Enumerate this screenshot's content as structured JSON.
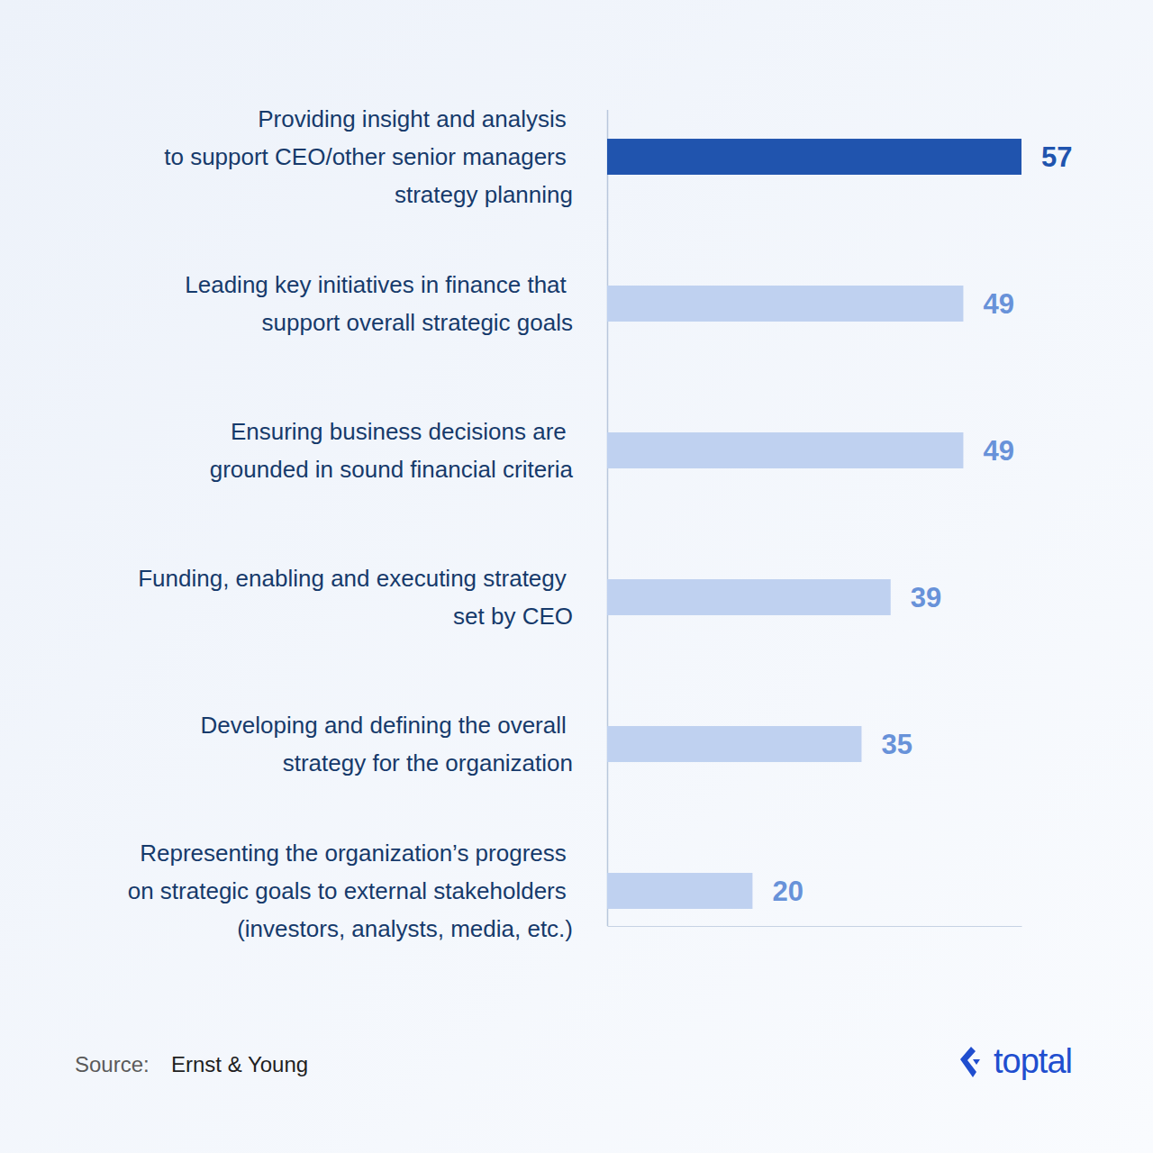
{
  "chart_data": {
    "type": "bar",
    "orientation": "horizontal",
    "categories": [
      "Providing insight and analysis\nto support CEO/other senior managers\nstrategy planning",
      "Leading key initiatives in finance that\nsupport overall strategic goals",
      "Ensuring business decisions are\ngrounded in sound financial criteria",
      "Funding, enabling and executing strategy\nset by CEO",
      "Developing and defining the overall\nstrategy for the organization",
      "Representing the organization’s progress\non strategic goals to external stakeholders\n(investors, analysts, media, etc.)"
    ],
    "values": [
      57,
      49,
      49,
      39,
      35,
      20
    ],
    "colors": [
      "#2054ae",
      "#bfd1f0",
      "#bfd1f0",
      "#bfd1f0",
      "#bfd1f0",
      "#bfd1f0"
    ],
    "xlim": [
      0,
      57
    ],
    "xticks": [
      0
    ],
    "tick_labels": false,
    "data_labels": true,
    "annotations": [
      "Source:",
      "Ernst & Young",
      "toptal"
    ]
  }
}
